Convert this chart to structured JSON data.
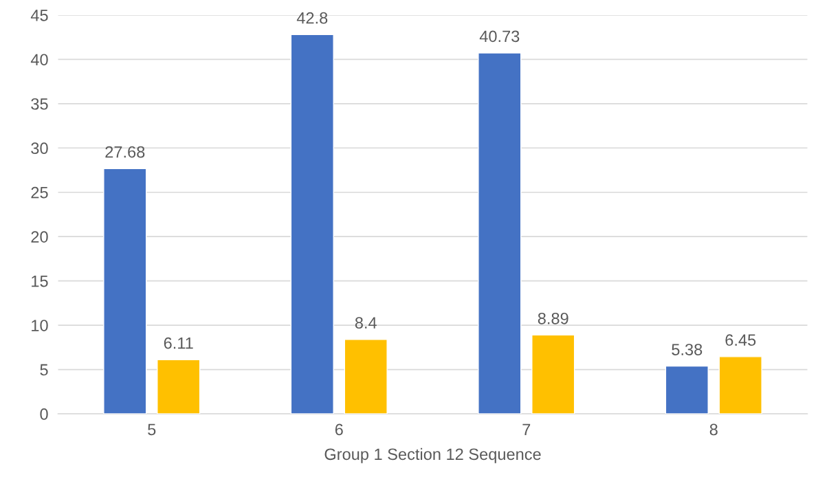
{
  "chart_data": {
    "type": "bar",
    "xlabel": "Group 1 Section 12 Sequence",
    "categories": [
      "5",
      "6",
      "7",
      "8"
    ],
    "series": [
      {
        "color": "#4472c4",
        "values": [
          27.68,
          42.8,
          40.73,
          5.38
        ]
      },
      {
        "color": "#ffc000",
        "values": [
          6.11,
          8.4,
          8.89,
          6.45
        ]
      }
    ],
    "ylim": [
      0,
      45
    ],
    "yticks": [
      0,
      5,
      10,
      15,
      20,
      25,
      30,
      35,
      40,
      45
    ],
    "grid": "y",
    "data_labels": true
  }
}
